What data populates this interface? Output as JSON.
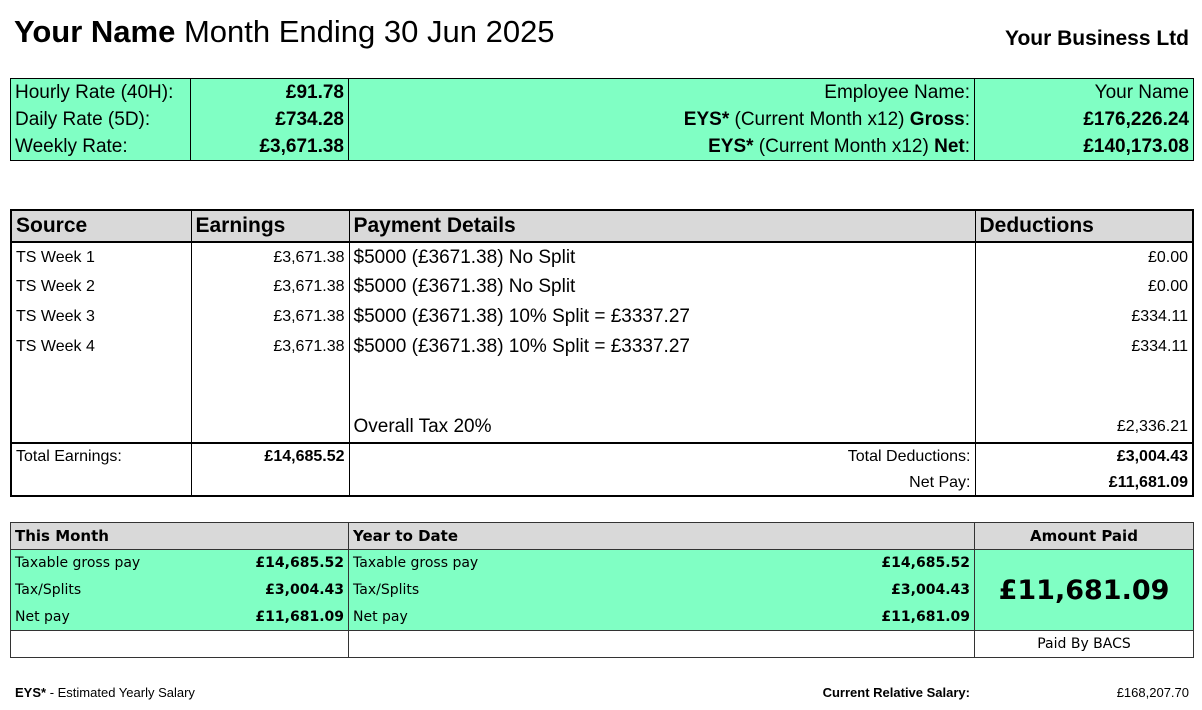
{
  "header": {
    "name": "Your Name",
    "period": "Month Ending 30 Jun 2025",
    "business": "Your Business Ltd"
  },
  "rates": {
    "rows": [
      {
        "label": "Hourly Rate (40H):",
        "value": "£91.78"
      },
      {
        "label": "Daily Rate (5D):",
        "value": "£734.28"
      },
      {
        "label": "Weekly Rate:",
        "value": "£3,671.38"
      }
    ],
    "employee_label": "Employee Name:",
    "employee_value": "Your Name",
    "eys_gross_prefix": "EYS*",
    "eys_gross_mid": " (Current Month x12) ",
    "eys_gross_suffix": "Gross",
    "eys_gross_colon": ":",
    "eys_gross_value": "£176,226.24",
    "eys_net_prefix": "EYS*",
    "eys_net_mid": " (Current Month x12) ",
    "eys_net_suffix": "Net",
    "eys_net_colon": ":",
    "eys_net_value": "£140,173.08"
  },
  "main": {
    "headers": [
      "Source",
      "Earnings",
      "Payment Details",
      "Deductions"
    ],
    "rows": [
      {
        "source": "TS Week 1",
        "earnings": "£3,671.38",
        "details": "$5000 (£3671.38) No Split",
        "deductions": "£0.00"
      },
      {
        "source": "TS Week 2",
        "earnings": "£3,671.38",
        "details": "$5000 (£3671.38) No Split",
        "deductions": "£0.00"
      },
      {
        "source": "TS Week 3",
        "earnings": "£3,671.38",
        "details": "$5000 (£3671.38) 10% Split = £3337.27",
        "deductions": "£334.11"
      },
      {
        "source": "TS Week 4",
        "earnings": "£3,671.38",
        "details": "$5000 (£3671.38) 10% Split = £3337.27",
        "deductions": "£334.11"
      }
    ],
    "tax_label": "Overall Tax 20%",
    "tax_value": "£2,336.21",
    "total_earnings_label": "Total Earnings:",
    "total_earnings": "£14,685.52",
    "total_deductions_label": "Total Deductions:",
    "total_deductions": "£3,004.43",
    "net_pay_label": "Net Pay:",
    "net_pay": "£11,681.09"
  },
  "summary": {
    "this_month": "This Month",
    "ytd": "Year to Date",
    "amount_paid": "Amount Paid",
    "rows": [
      {
        "label": "Taxable gross pay",
        "month": "£14,685.52",
        "ytd": "£14,685.52"
      },
      {
        "label": "Tax/Splits",
        "month": "£3,004.43",
        "ytd": "£3,004.43"
      },
      {
        "label": "Net pay",
        "month": "£11,681.09",
        "ytd": "£11,681.09"
      }
    ],
    "amount": "£11,681.09",
    "paid_by": "Paid By BACS"
  },
  "footer": {
    "eys": "EYS*",
    "eys_desc": " - Estimated Yearly Salary",
    "relative_label": "Current Relative Salary:",
    "relative_value": "£168,207.70"
  }
}
